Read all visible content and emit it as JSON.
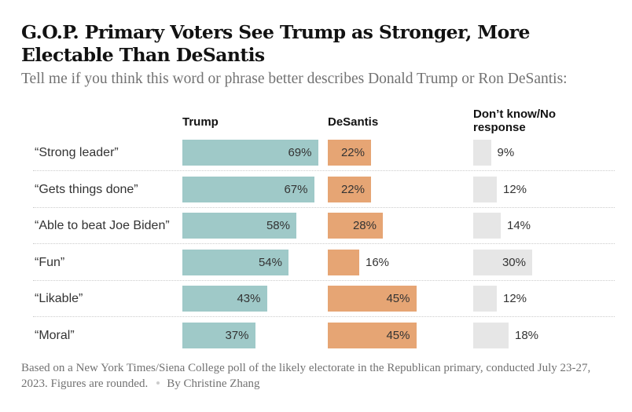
{
  "chart_data": {
    "type": "bar",
    "title": "G.O.P. Primary Voters See Trump as Stronger, More Electable Than DeSantis",
    "subtitle": "Tell me if you think this word or phrase better describes Donald Trump or Ron DeSantis:",
    "categories": [
      "“Strong leader”",
      "“Gets things done”",
      "“Able to beat Joe Biden”",
      "“Fun”",
      "“Likable”",
      "“Moral”"
    ],
    "series": [
      {
        "name": "Trump",
        "color": "#9fc9c8",
        "values": [
          69,
          67,
          58,
          54,
          43,
          37
        ]
      },
      {
        "name": "DeSantis",
        "color": "#e6a574",
        "values": [
          22,
          22,
          28,
          16,
          45,
          45
        ]
      },
      {
        "name": "Don’t know/No response",
        "color": "#e6e6e6",
        "values": [
          9,
          12,
          14,
          30,
          12,
          18
        ]
      }
    ],
    "value_suffix": "%",
    "xlabel": "",
    "ylabel": "",
    "note": "Based on a New York Times/Siena College poll of the likely electorate in the Republican primary, conducted July 23-27, 2023. Figures are rounded.",
    "byline": "By Christine Zhang"
  }
}
